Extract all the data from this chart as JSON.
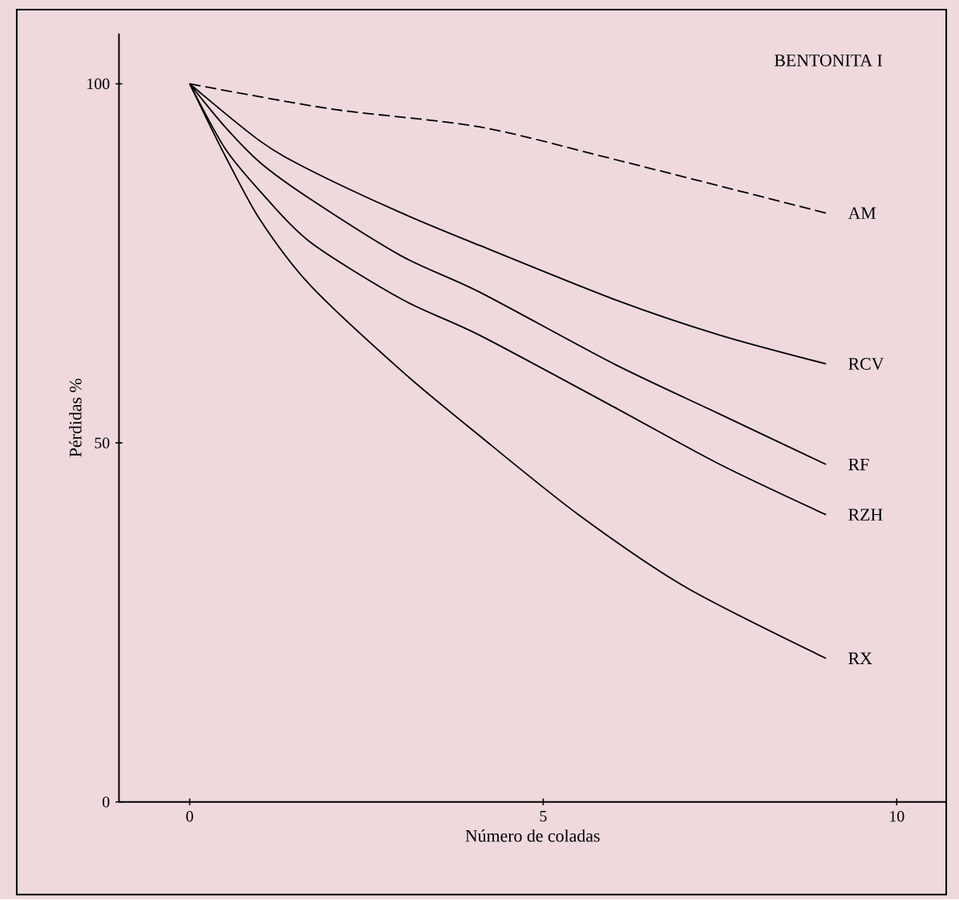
{
  "chart_data": {
    "type": "line",
    "title": "BENTONITA I",
    "xlabel": "Número de coladas",
    "ylabel": "Pérdidas %",
    "xlim": [
      -1,
      10.7
    ],
    "ylim": [
      0,
      107
    ],
    "xticks": [
      0,
      5,
      10
    ],
    "yticks": [
      0,
      50,
      100
    ],
    "grid": false,
    "legend": false,
    "marker": "none",
    "series": [
      {
        "name": "AM",
        "color": "#000000",
        "line_style": "dashed",
        "x": [
          0,
          2,
          4.1,
          6,
          9
        ],
        "values": [
          100,
          96.5,
          94,
          89.5,
          82
        ]
      },
      {
        "name": "RCV",
        "color": "#000000",
        "x": [
          0,
          1,
          1.7,
          3,
          4.1,
          6,
          7.5,
          9
        ],
        "values": [
          100,
          92,
          88,
          82,
          77.5,
          70,
          65,
          61
        ]
      },
      {
        "name": "RF",
        "color": "#000000",
        "x": [
          0,
          0.5,
          1,
          1.7,
          3,
          4.1,
          6,
          7.5,
          9
        ],
        "values": [
          100,
          94,
          89,
          84,
          76,
          71,
          61,
          54,
          47
        ]
      },
      {
        "name": "RZH",
        "color": "#000000",
        "x": [
          0,
          0.5,
          1,
          1.7,
          3,
          4.1,
          6,
          7.5,
          9
        ],
        "values": [
          100,
          91,
          85,
          78,
          70,
          65,
          55,
          47,
          40
        ]
      },
      {
        "name": "RX",
        "color": "#000000",
        "x": [
          0,
          0.5,
          1,
          1.7,
          3,
          4.1,
          5.5,
          7,
          9
        ],
        "values": [
          100,
          90,
          81,
          72,
          60,
          51,
          40,
          30,
          20
        ]
      }
    ]
  }
}
